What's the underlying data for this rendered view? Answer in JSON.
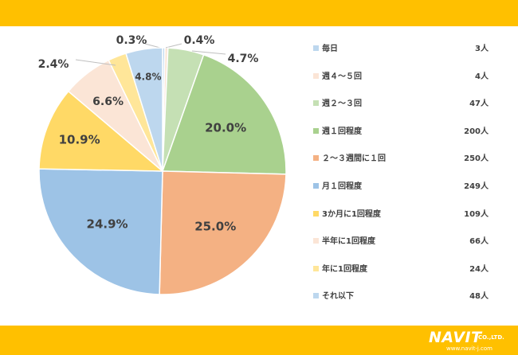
{
  "chart_data": {
    "type": "pie",
    "slices": [
      {
        "label": "毎日",
        "count": "3人",
        "percent_label": "0.3%",
        "value": 0.3,
        "color": "#bdd7ee"
      },
      {
        "label": "週４～５回",
        "count": "4人",
        "percent_label": "0.4%",
        "value": 0.4,
        "color": "#fbe5d6"
      },
      {
        "label": "週２～３回",
        "count": "47人",
        "percent_label": "4.7%",
        "value": 4.7,
        "color": "#c5e0b4"
      },
      {
        "label": "週１回程度",
        "count": "200人",
        "percent_label": "20.0%",
        "value": 20.0,
        "color": "#a9d18e"
      },
      {
        "label": "２～３週間に１回",
        "count": "250人",
        "percent_label": "25.0%",
        "value": 25.0,
        "color": "#f4b183"
      },
      {
        "label": "月１回程度",
        "count": "249人",
        "percent_label": "24.9%",
        "value": 24.9,
        "color": "#9dc3e6"
      },
      {
        "label": "3か月に1回程度",
        "count": "109人",
        "percent_label": "10.9%",
        "value": 10.9,
        "color": "#ffd966"
      },
      {
        "label": "半年に1回程度",
        "count": "66人",
        "percent_label": "6.6%",
        "value": 6.6,
        "color": "#fbe5d6"
      },
      {
        "label": "年に1回程度",
        "count": "24人",
        "percent_label": "2.4%",
        "value": 2.4,
        "color": "#ffe699"
      },
      {
        "label": "それ以下",
        "count": "48人",
        "percent_label": "4.8%",
        "value": 4.8,
        "color": "#bdd7ee"
      }
    ],
    "legend_position": "right"
  },
  "logo": {
    "name": "NAVIT",
    "suffix": "CO.,LTD.",
    "url": "www.navit-j.com"
  }
}
